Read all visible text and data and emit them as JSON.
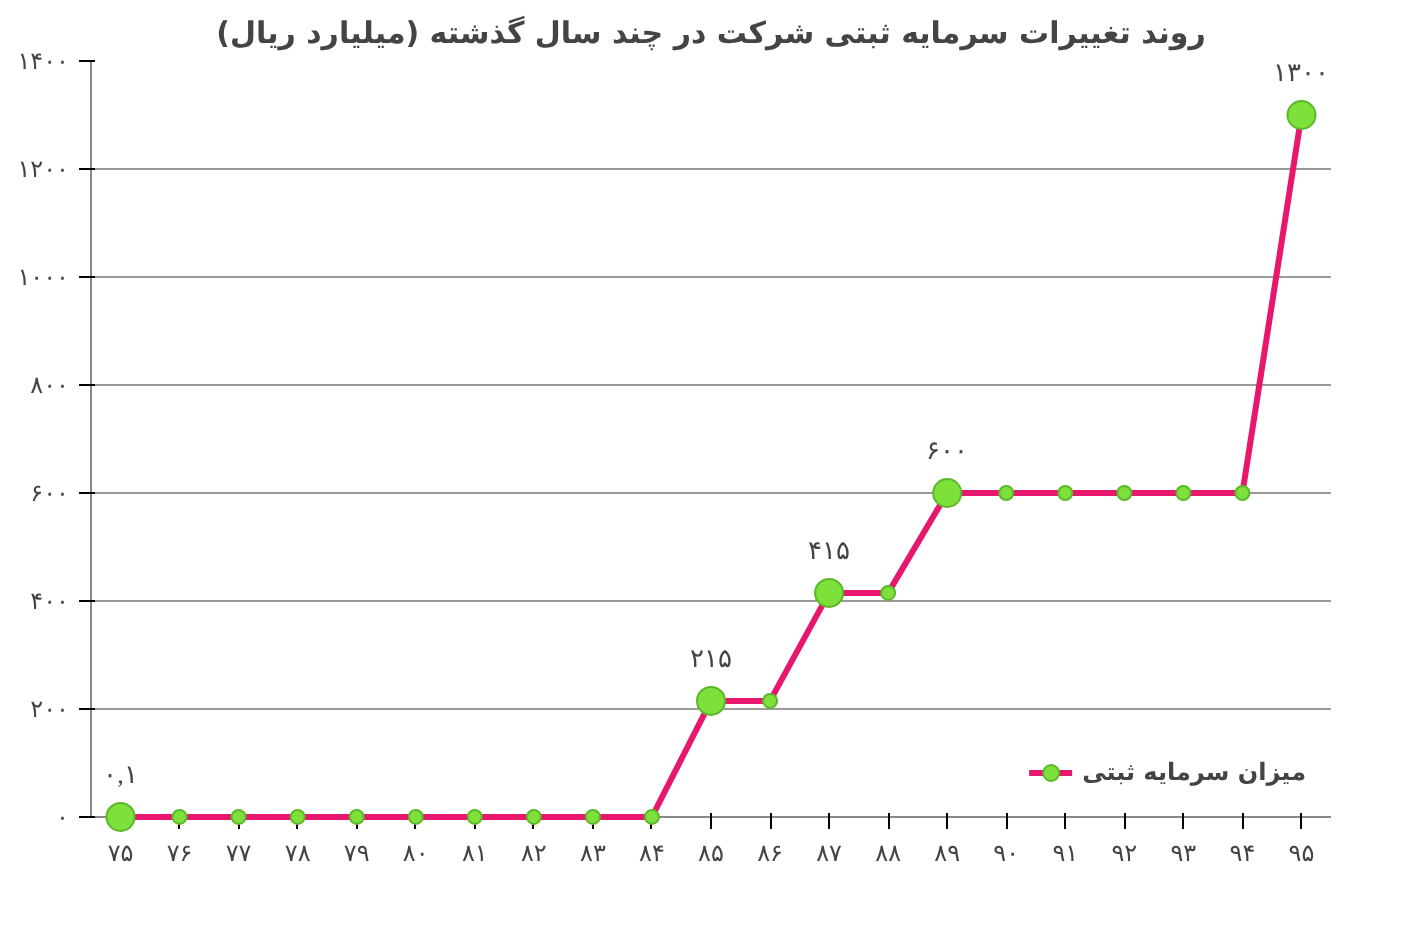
{
  "chart_data": {
    "type": "line",
    "title": "روند تغییرات سرمایه ثبتی شرکت در چند سال گذشته (میلیارد ریال)",
    "categories": [
      "۷۵",
      "۷۶",
      "۷۷",
      "۷۸",
      "۷۹",
      "۸۰",
      "۸۱",
      "۸۲",
      "۸۳",
      "۸۴",
      "۸۵",
      "۸۶",
      "۸۷",
      "۸۸",
      "۸۹",
      "۹۰",
      "۹۱",
      "۹۲",
      "۹۳",
      "۹۴",
      "۹۵"
    ],
    "series": [
      {
        "name": "میزان سرمایه ثبتی",
        "color": "#e8176e",
        "values": [
          0.1,
          0.1,
          0.1,
          0.1,
          0.1,
          0.1,
          0.1,
          0.1,
          0.1,
          0.1,
          215,
          215,
          415,
          415,
          600,
          600,
          600,
          600,
          600,
          600,
          1300
        ],
        "value_labels": [
          "۰,۱",
          null,
          null,
          null,
          null,
          null,
          null,
          null,
          null,
          null,
          "۲۱۵",
          null,
          "۴۱۵",
          null,
          "۶۰۰",
          null,
          null,
          null,
          null,
          null,
          "۱۳۰۰"
        ]
      }
    ],
    "ylim": [
      0,
      1400
    ],
    "yticks": [
      {
        "value": 0,
        "label": "۰"
      },
      {
        "value": 200,
        "label": "۲۰۰"
      },
      {
        "value": 400,
        "label": "۴۰۰"
      },
      {
        "value": 600,
        "label": "۶۰۰"
      },
      {
        "value": 800,
        "label": "۸۰۰"
      },
      {
        "value": 1000,
        "label": "۱۰۰۰"
      },
      {
        "value": 1200,
        "label": "۱۲۰۰"
      },
      {
        "value": 1400,
        "label": "۱۴۰۰"
      }
    ],
    "grid": "y",
    "legend": "bottom right",
    "marker": "circle",
    "line_style": "solid"
  }
}
